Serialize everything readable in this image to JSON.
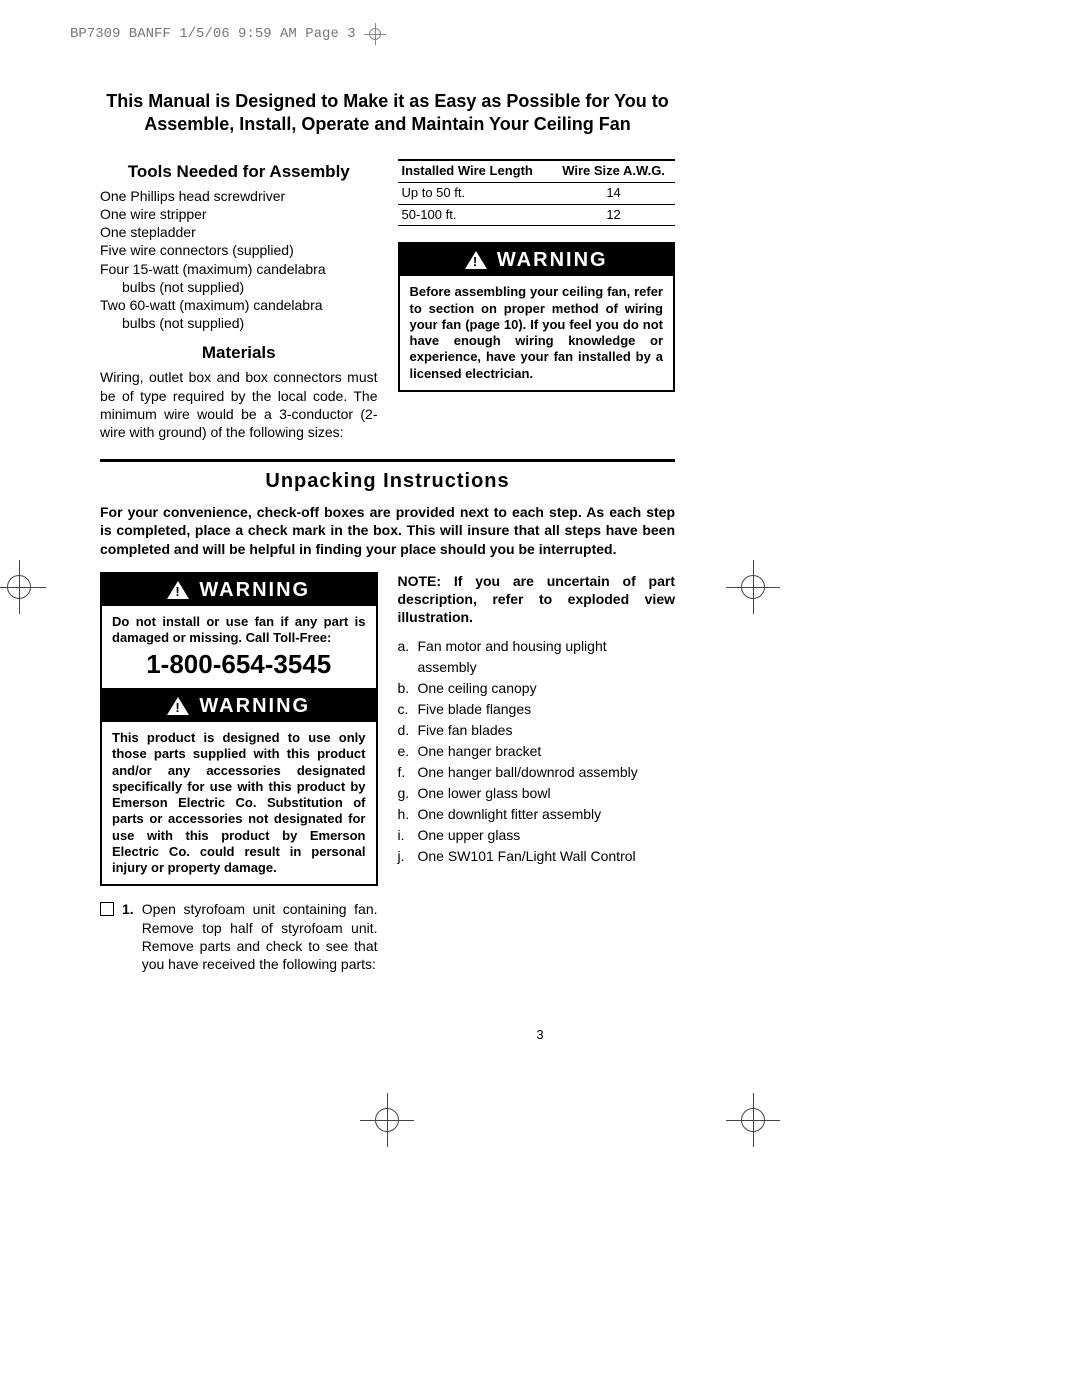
{
  "header": {
    "slug": "BP7309 BANFF  1/5/06  9:59 AM  Page 3"
  },
  "main_title": "This Manual is Designed to Make it as Easy as Possible for You to Assemble, Install, Operate and Maintain Your Ceiling Fan",
  "tools": {
    "heading": "Tools Needed for Assembly",
    "items": [
      "One Phillips head screwdriver",
      "One wire stripper",
      "One stepladder",
      "Five wire connectors (supplied)",
      "Four 15-watt (maximum) candelabra",
      "bulbs (not supplied)",
      "Two 60-watt (maximum) candelabra",
      "bulbs (not supplied)"
    ],
    "indent_flags": [
      false,
      false,
      false,
      false,
      false,
      true,
      false,
      true
    ]
  },
  "materials": {
    "heading": "Materials",
    "text": "Wiring, outlet box and box connectors must be of type required by the local code. The minimum wire would be a 3-conductor (2-wire with ground) of the following sizes:"
  },
  "wire_table": {
    "columns": [
      "Installed Wire Length",
      "Wire Size A.W.G."
    ],
    "rows": [
      [
        "Up to 50 ft.",
        "14"
      ],
      [
        "50-100 ft.",
        "12"
      ]
    ]
  },
  "warn_right": {
    "label": "WARNING",
    "text": "Before assembling your ceiling fan, refer to section on proper method of wiring your fan (page 10). If you feel you do not have enough wiring knowledge or experience, have your fan installed by a licensed electrician."
  },
  "unpack": {
    "title": "Unpacking Instructions",
    "intro": "For your convenience, check-off boxes are provided next to each step. As each step is completed, place a check mark in the box. This will insure that all steps have been completed and will be helpful in finding your place should you be interrupted."
  },
  "warn_left_1": {
    "label": "WARNING",
    "text": "Do not install or use fan if any part is damaged or missing. Call Toll-Free:",
    "phone": "1-800-654-3545"
  },
  "warn_left_2": {
    "label": "WARNING",
    "text": "This product is designed to use only those parts supplied with this product and/or any accessories designated specifically for use with this product by Emerson Electric Co. Substitution of parts or accessories not designated for use with this product by Emerson Electric Co. could result in personal injury or property damage."
  },
  "step1": {
    "num": "1.",
    "text": "Open styrofoam unit containing fan. Remove top half of styrofoam unit. Remove parts and check to see that you have received the following parts:"
  },
  "note": "NOTE: If you are uncertain of part description, refer to exploded view illustration.",
  "parts": [
    {
      "l": "a.",
      "t": "Fan motor and housing uplight",
      "t2": "assembly"
    },
    {
      "l": "b.",
      "t": "One ceiling canopy"
    },
    {
      "l": "c.",
      "t": "Five blade flanges"
    },
    {
      "l": "d.",
      "t": "Five fan blades"
    },
    {
      "l": "e.",
      "t": "One hanger bracket"
    },
    {
      "l": "f.",
      "t": "One hanger ball/downrod assembly"
    },
    {
      "l": "g.",
      "t": "One lower glass bowl"
    },
    {
      "l": "h.",
      "t": "One downlight fitter assembly"
    },
    {
      "l": "i.",
      "t": "One upper glass"
    },
    {
      "l": "j.",
      "t": "One SW101 Fan/Light Wall Control"
    }
  ],
  "page_number": "3"
}
